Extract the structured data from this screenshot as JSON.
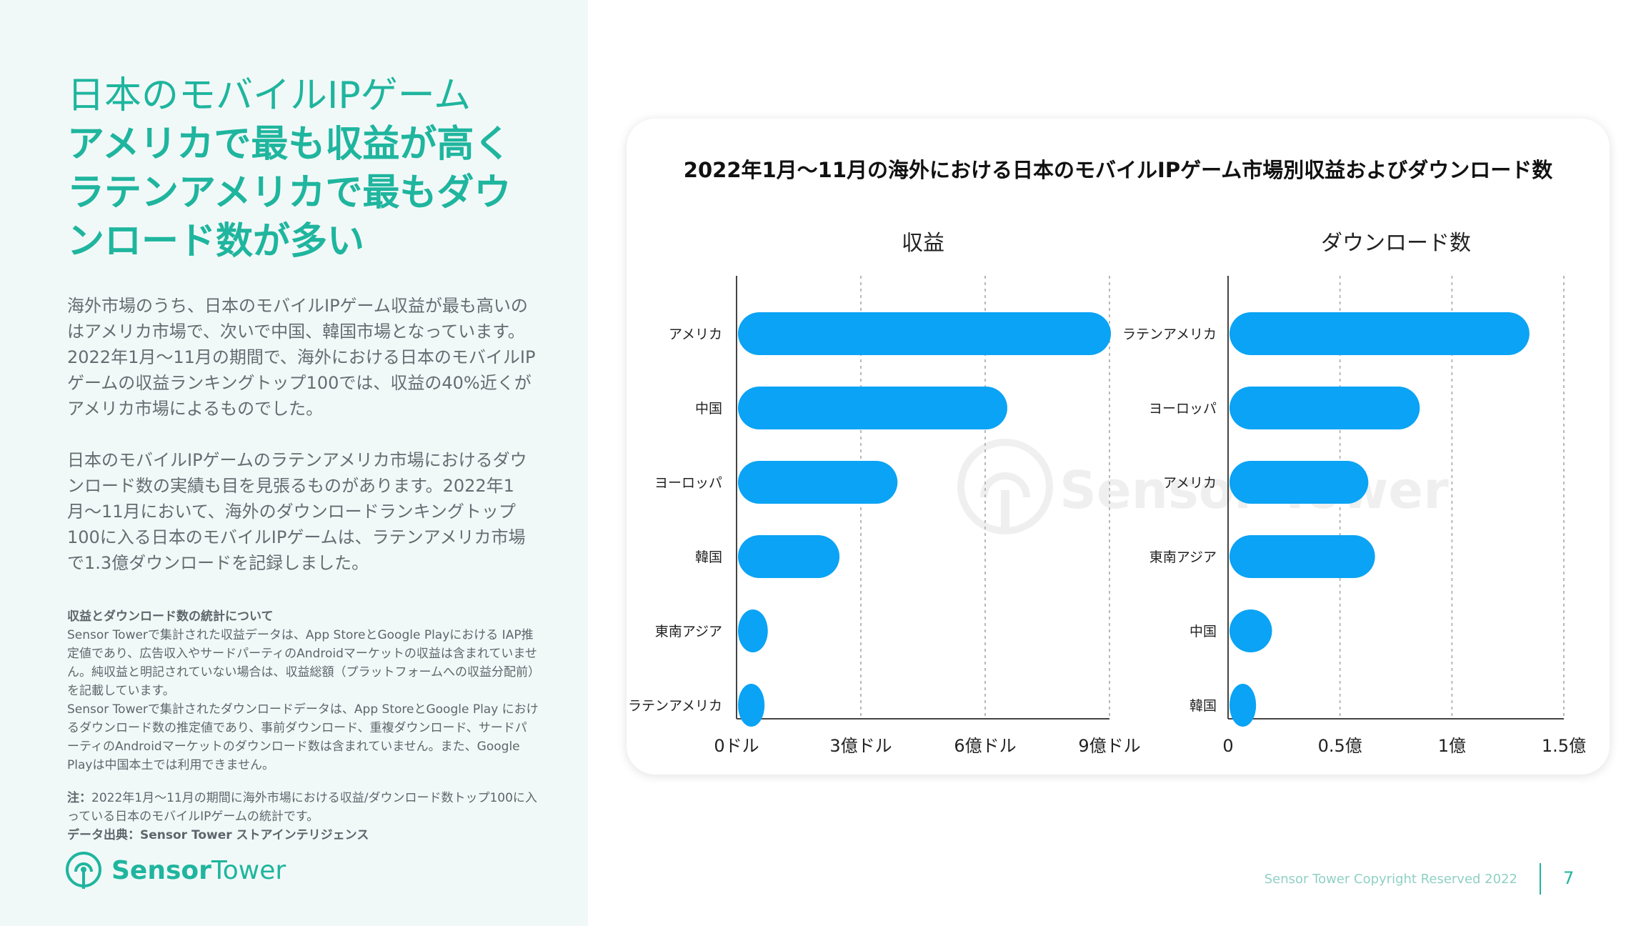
{
  "title": {
    "line1": "日本のモバイルIPゲーム",
    "line2": "アメリカで最も収益が高く",
    "line3": "ラテンアメリカで最もダウ",
    "line4": "ンロード数が多い"
  },
  "paragraph1": "海外市場のうち、日本のモバイルIPゲーム収益が最も高いのはアメリカ市場で、次いで中国、韓国市場となっています。2022年1月〜11月の期間で、海外における日本のモバイルIPゲームの収益ランキングトップ100では、収益の40%近くがアメリカ市場によるものでした。",
  "paragraph2": "日本のモバイルIPゲームのラテンアメリカ市場におけるダウンロード数の実績も目を見張るものがあります。2022年1月〜11月において、海外のダウンロードランキングトップ100に入る日本のモバイルIPゲームは、ラテンアメリカ市場で1.3億ダウンロードを記録しました。",
  "notes": {
    "heading": "収益とダウンロード数の統計について",
    "text1": "Sensor Towerで集計された収益データは、App StoreとGoogle Playにおける IAP推定値であり、広告収入やサードパーティのAndroidマーケットの収益は含まれていません。純収益と明記されていない場合は、収益総額（プラットフォームへの収益分配前）を記載しています。",
    "text2": "Sensor Towerで集計されたダウンロードデータは、App StoreとGoogle Play におけるダウンロード数の推定値であり、事前ダウンロード、重複ダウンロード、サードパーティのAndroidマーケットのダウンロード数は含まれていません。また、Google Playは中国本土では利用できません。",
    "note_label": "注：",
    "note_text": "2022年1月〜11月の期間に海外市場における収益/ダウンロード数トップ100に入っている日本のモバイルIPゲームの統計です。",
    "source": "データ出典：Sensor Tower ストアインテリジェンス"
  },
  "logo": {
    "text1": "Sensor",
    "text2": "Tower"
  },
  "footer": {
    "copyright": "Sensor Tower Copyright Reserved 2022",
    "page": "7"
  },
  "colors": {
    "accent": "#1fb59e",
    "bar": "#0aa3f5",
    "panel": "#f1f9f8"
  },
  "chart_data": [
    {
      "type": "bar",
      "orientation": "horizontal",
      "title": "2022年1月〜11月の海外における日本のモバイルIPゲーム市場別収益およびダウンロード数",
      "subtitle": "収益",
      "categories": [
        "アメリカ",
        "中国",
        "ヨーロッパ",
        "韓国",
        "東南アジア",
        "ラテンアメリカ"
      ],
      "values": [
        9.0,
        6.5,
        3.85,
        2.45,
        0.72,
        0.45
      ],
      "unit": "億ドル",
      "xlim": [
        0,
        9
      ],
      "ticks": [
        0,
        3,
        6,
        9
      ],
      "tick_labels": [
        "0ドル",
        "3億ドル",
        "6億ドル",
        "9億ドル"
      ],
      "grid": true
    },
    {
      "type": "bar",
      "orientation": "horizontal",
      "subtitle": "ダウンロード数",
      "categories": [
        "ラテンアメリカ",
        "ヨーロッパ",
        "アメリカ",
        "東南アジア",
        "中国",
        "韓国"
      ],
      "values": [
        1.34,
        0.85,
        0.62,
        0.65,
        0.19,
        0.1
      ],
      "unit": "億",
      "xlim": [
        0,
        1.5
      ],
      "ticks": [
        0,
        0.5,
        1,
        1.5
      ],
      "tick_labels": [
        "0",
        "0.5億",
        "1億",
        "1.5億"
      ],
      "grid": true
    }
  ]
}
